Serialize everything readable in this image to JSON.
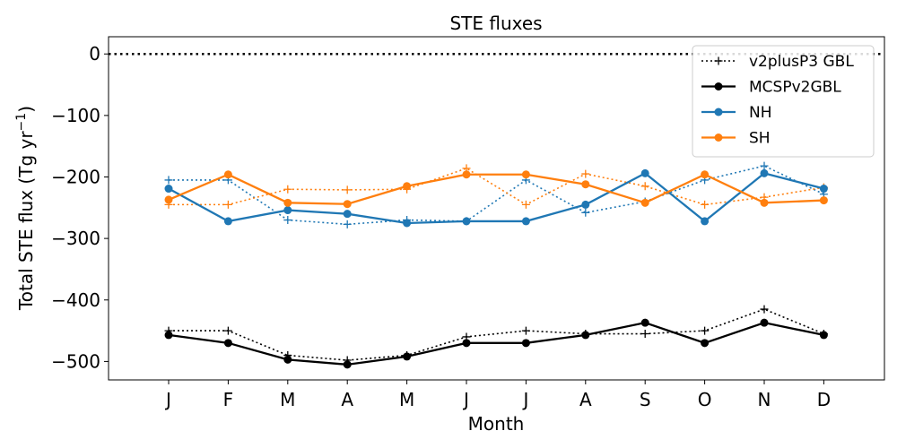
{
  "chart_data": {
    "type": "line",
    "title": "STE fluxes",
    "xlabel": "Month",
    "ylabel": "Total STE flux (Tg yr",
    "ylabel_sup": "−1",
    "ylabel_close": ")",
    "categories": [
      "J",
      "F",
      "M",
      "A",
      "M",
      "J",
      "J",
      "A",
      "S",
      "O",
      "N",
      "D"
    ],
    "ylim": [
      -530,
      28
    ],
    "yticks": [
      0,
      -100,
      -200,
      -300,
      -400,
      -500
    ],
    "ytick_labels": [
      "0",
      "−100",
      "−200",
      "−300",
      "−400",
      "−500"
    ],
    "grid": false,
    "legend_position": "top-right",
    "reference_line": {
      "y": 0,
      "style": "dotted",
      "color": "#000000"
    },
    "series": [
      {
        "name": "v2plusP3 GBL",
        "legend": true,
        "color": "#000000",
        "style": "dotted",
        "marker": "plus",
        "values": [
          -450,
          -450,
          -490,
          -498,
          -490,
          -460,
          -450,
          -455,
          -455,
          -450,
          -415,
          -455
        ]
      },
      {
        "name": "MCSPv2GBL",
        "legend": true,
        "color": "#000000",
        "style": "solid",
        "marker": "circle",
        "values": [
          -457,
          -470,
          -497,
          -505,
          -492,
          -470,
          -470,
          -457,
          -437,
          -470,
          -437,
          -457
        ]
      },
      {
        "name": "NH",
        "legend": true,
        "color": "#1f77b4",
        "style": "solid",
        "marker": "circle",
        "values": [
          -219,
          -272,
          -254,
          -260,
          -275,
          -272,
          -272,
          -245,
          -194,
          -272,
          -194,
          -219
        ]
      },
      {
        "name": "SH",
        "legend": true,
        "color": "#ff7f0e",
        "style": "solid",
        "marker": "circle",
        "values": [
          -237,
          -196,
          -242,
          -244,
          -215,
          -196,
          -196,
          -212,
          -242,
          -196,
          -242,
          -238
        ]
      },
      {
        "legend": false,
        "color": "#1f77b4",
        "style": "dotted",
        "marker": "plus",
        "values": [
          -205,
          -205,
          -270,
          -277,
          -270,
          -272,
          -205,
          -258,
          -240,
          -205,
          -182,
          -228
        ]
      },
      {
        "legend": false,
        "color": "#ff7f0e",
        "style": "dotted",
        "marker": "plus",
        "values": [
          -245,
          -245,
          -220,
          -221,
          -220,
          -186,
          -245,
          -195,
          -215,
          -245,
          -233,
          -217
        ]
      }
    ]
  }
}
